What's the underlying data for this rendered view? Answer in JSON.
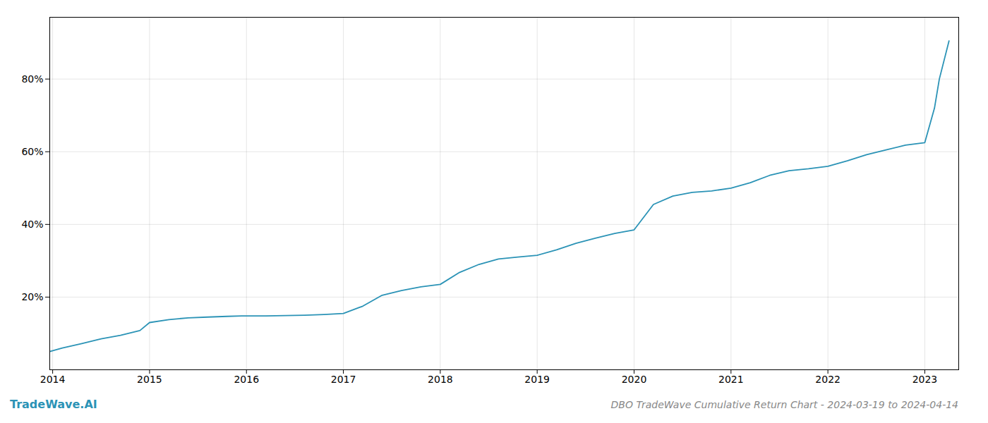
{
  "chart_data": {
    "type": "line",
    "title": "DBO TradeWave Cumulative Return Chart - 2024-03-19 to 2024-04-14",
    "annotations": [
      "TradeWave.AI"
    ],
    "color": "#2b93b6",
    "x": [
      2013.97,
      2014.1,
      2014.3,
      2014.5,
      2014.7,
      2014.9,
      2015.0,
      2015.2,
      2015.4,
      2015.6,
      2015.8,
      2015.95,
      2016.0,
      2016.2,
      2016.4,
      2016.6,
      2016.8,
      2017.0,
      2017.2,
      2017.4,
      2017.6,
      2017.8,
      2018.0,
      2018.2,
      2018.4,
      2018.6,
      2018.8,
      2019.0,
      2019.2,
      2019.4,
      2019.6,
      2019.8,
      2020.0,
      2020.2,
      2020.4,
      2020.6,
      2020.8,
      2021.0,
      2021.2,
      2021.4,
      2021.6,
      2021.8,
      2022.0,
      2022.2,
      2022.4,
      2022.6,
      2022.8,
      2023.0,
      2023.1,
      2023.15,
      2023.25
    ],
    "values": [
      0.05,
      0.06,
      0.072,
      0.085,
      0.095,
      0.108,
      0.13,
      0.138,
      0.143,
      0.145,
      0.147,
      0.148,
      0.148,
      0.148,
      0.149,
      0.15,
      0.152,
      0.155,
      0.175,
      0.205,
      0.218,
      0.228,
      0.235,
      0.268,
      0.29,
      0.305,
      0.31,
      0.315,
      0.33,
      0.348,
      0.362,
      0.375,
      0.385,
      0.455,
      0.478,
      0.488,
      0.492,
      0.5,
      0.515,
      0.535,
      0.548,
      0.553,
      0.56,
      0.575,
      0.592,
      0.605,
      0.618,
      0.625,
      0.72,
      0.8,
      0.905
    ],
    "xlim": [
      2013.97,
      2023.35
    ],
    "xticks": [
      2014,
      2015,
      2016,
      2017,
      2018,
      2019,
      2020,
      2021,
      2022,
      2023
    ],
    "ylim": [
      0.0,
      0.97
    ],
    "yticks": [
      {
        "value": 0.2,
        "label": "20%"
      },
      {
        "value": 0.4,
        "label": "40%"
      },
      {
        "value": 0.6,
        "label": "60%"
      },
      {
        "value": 0.8,
        "label": "80%"
      }
    ],
    "grid": true
  }
}
